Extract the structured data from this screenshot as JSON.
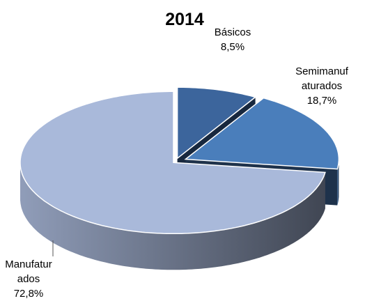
{
  "chart_data": {
    "type": "pie",
    "title": "2014",
    "categories": [
      "Básicos",
      "Semimanufaturados",
      "Manufaturados"
    ],
    "values": [
      8.5,
      18.7,
      72.8
    ],
    "value_labels": [
      "8,5%",
      "18,7%",
      "72,8%"
    ],
    "colors": [
      "#3c659c",
      "#4a7ebb",
      "#a9b9da"
    ]
  }
}
